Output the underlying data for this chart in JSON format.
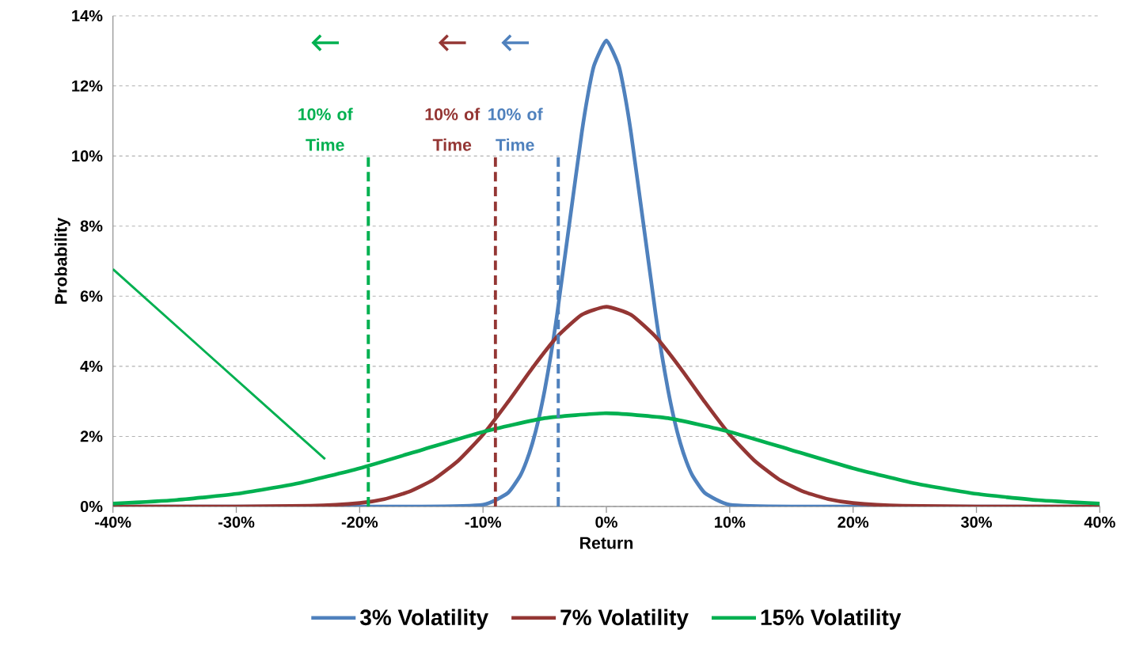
{
  "chart_data": {
    "type": "line",
    "xlabel": "Return",
    "ylabel": "Probability",
    "x": [
      -40,
      -15,
      -10,
      -8,
      -7,
      -6.5,
      -6,
      -5.5,
      -5,
      -4.5,
      -4,
      -3,
      -2,
      -1.5,
      -1,
      0,
      1,
      1.5,
      2,
      3,
      4,
      4.5,
      5,
      5.5,
      6,
      6.5,
      7,
      8,
      10,
      15,
      40
    ],
    "series": [
      {
        "name": "3% Volatility",
        "color": "#4f81bd",
        "values": [
          0,
          0,
          0.05,
          0.38,
          0.87,
          1.27,
          1.8,
          2.48,
          3.32,
          4.32,
          5.47,
          8.07,
          10.65,
          11.74,
          12.58,
          13.3,
          12.58,
          11.74,
          10.65,
          8.07,
          5.47,
          4.32,
          3.32,
          2.48,
          1.8,
          1.27,
          0.87,
          0.38,
          0.05,
          0,
          0
        ]
      },
      {
        "name": "7% Volatility",
        "color": "#943634",
        "x": [
          -40,
          -30,
          -24,
          -20,
          -18,
          -16,
          -14,
          -12,
          -10,
          -8,
          -6,
          -4,
          -2,
          0,
          2,
          4,
          6,
          8,
          10,
          12,
          14,
          16,
          18,
          20,
          24,
          30,
          40
        ],
        "values": [
          0,
          0,
          0.02,
          0.1,
          0.21,
          0.42,
          0.77,
          1.31,
          2.05,
          2.97,
          3.95,
          4.84,
          5.47,
          5.7,
          5.47,
          4.84,
          3.95,
          2.97,
          2.05,
          1.31,
          0.77,
          0.42,
          0.21,
          0.1,
          0.02,
          0,
          0
        ]
      },
      {
        "name": "15% Volatility",
        "color": "#00b050",
        "x": [
          -40,
          -35,
          -30,
          -25,
          -20,
          -15,
          -10,
          -5,
          0,
          5,
          10,
          15,
          20,
          25,
          30,
          35,
          40
        ],
        "values": [
          0.08,
          0.18,
          0.36,
          0.66,
          1.09,
          1.61,
          2.13,
          2.52,
          2.66,
          2.52,
          2.13,
          1.61,
          1.09,
          0.66,
          0.36,
          0.18,
          0.08
        ]
      },
      {
        "color": "#00b050",
        "x": [
          -40,
          -22.8
        ],
        "values": [
          6.77,
          1.35
        ]
      }
    ],
    "xlim": [
      -40,
      40
    ],
    "ylim": [
      0,
      14
    ],
    "xticks": [
      {
        "value": -40,
        "label": "-40%"
      },
      {
        "value": -30,
        "label": "-30%"
      },
      {
        "value": -20,
        "label": "-20%"
      },
      {
        "value": -10,
        "label": "-10%"
      },
      {
        "value": 0,
        "label": "0%"
      },
      {
        "value": 10,
        "label": "10%"
      },
      {
        "value": 20,
        "label": "20%"
      },
      {
        "value": 30,
        "label": "30%"
      },
      {
        "value": 40,
        "label": "40%"
      }
    ],
    "yticks": [
      {
        "value": 0,
        "label": "0%"
      },
      {
        "value": 2,
        "label": "2%"
      },
      {
        "value": 4,
        "label": "4%"
      },
      {
        "value": 6,
        "label": "6%"
      },
      {
        "value": 8,
        "label": "8%"
      },
      {
        "value": 10,
        "label": "10%"
      },
      {
        "value": 12,
        "label": "12%"
      },
      {
        "value": 14,
        "label": "14%"
      }
    ],
    "ref_lines": [
      {
        "axis": "x",
        "value": -19.3,
        "label": "10% of Time",
        "color": "#00b050",
        "line_style": "dashed"
      },
      {
        "axis": "x",
        "value": -9.0,
        "label": "10% of Time",
        "color": "#943634",
        "line_style": "dashed"
      },
      {
        "axis": "x",
        "value": -3.9,
        "label": "10% of Time",
        "color": "#4f81bd",
        "line_style": "dashed"
      }
    ],
    "grid": "y",
    "legend": "bottom",
    "marker": "none",
    "line_style": "solid"
  }
}
